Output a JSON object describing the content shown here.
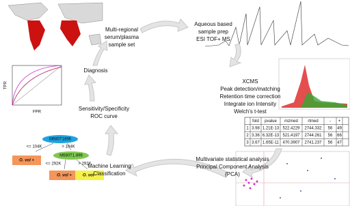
{
  "steps": {
    "sample_set": [
      "Multi-regional",
      "serum/plasma",
      "sample set"
    ],
    "sample_prep": [
      "Aqueous based",
      "sample prep",
      "ESI TOF+ MS"
    ],
    "xcms": [
      "XCMS",
      "Peak detection/matching",
      "Retention time correction",
      "Integrate ion Intensity",
      "Welch's t-test"
    ],
    "pca": [
      "Multivariate statistical analysis",
      "Principal Component Analysis",
      "(PCA)"
    ],
    "classification": [
      "Machine Learning",
      "Classification"
    ],
    "roc": [
      "Sensitivity/Specificity",
      "ROC curve"
    ],
    "diagnosis": "Diagnosis"
  },
  "table": {
    "header": [
      "fold",
      "pvalue",
      "mzmed",
      "rtmed",
      "-",
      "+"
    ],
    "rows": [
      [
        "1",
        "3.98",
        "1.21E-13",
        "522.4229",
        "2744.332",
        "56",
        "49"
      ],
      [
        "2",
        "3.36",
        "6.32E-13",
        "521.4197",
        "2744.261",
        "56",
        "66"
      ],
      [
        "3",
        "3.67",
        "1.65E-11",
        "470.3907",
        "2741.237",
        "56",
        "47"
      ]
    ]
  },
  "tree": {
    "root": "M680T1896",
    "root_left": "<= 104K",
    "root_right": "> 104K",
    "leaf1": "O. vol +",
    "node2": "M680T1.896",
    "node2_left": "<= 292K",
    "node2_right": "> 292K",
    "leaf2": "O. vol +",
    "leaf3": "O. vol -"
  },
  "roc_plot": {
    "y_label": "TPR",
    "x_label": "FPR"
  }
}
